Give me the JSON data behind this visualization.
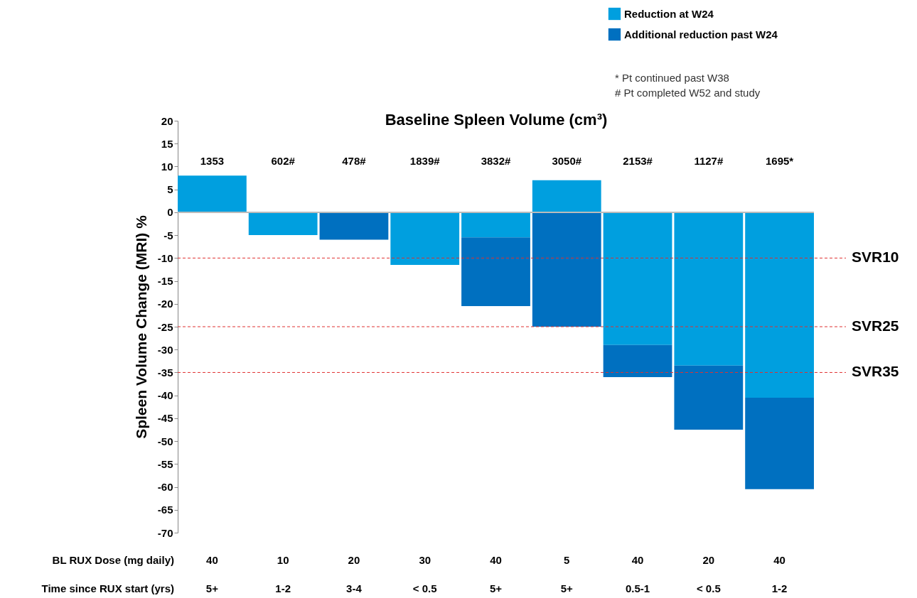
{
  "chart_data": {
    "type": "bar",
    "stacked": true,
    "xlabel": "Baseline Spleen Volume (cm³)",
    "ylabel": "Spleen Volume Change (MRI) %",
    "categories": [
      "1353",
      "602#",
      "478#",
      "1839#",
      "3832#",
      "3050#",
      "2153#",
      "1127#",
      "1695*"
    ],
    "series": [
      {
        "name": "Reduction at W24",
        "color": "#009fdf",
        "values": [
          8,
          -5,
          null,
          -11.5,
          -5.5,
          7,
          -29,
          -33.5,
          -40.5
        ]
      },
      {
        "name": "Additional reduction past W24",
        "color": "#0070c0",
        "values": [
          null,
          null,
          -6,
          null,
          -15,
          -25,
          -7,
          -14,
          -20
        ]
      }
    ],
    "ylim": [
      -70,
      20
    ],
    "yticks": [
      -70,
      -65,
      -60,
      -55,
      -50,
      -45,
      -40,
      -35,
      -30,
      -25,
      -20,
      -15,
      -10,
      -5,
      0,
      5,
      10,
      15,
      20
    ],
    "grid": false,
    "legend": "top right",
    "ref_lines": [
      {
        "axis": "y",
        "value": -10,
        "label": "SVR10",
        "color": "#e03030",
        "line_style": "dashed"
      },
      {
        "axis": "y",
        "value": -25,
        "label": "SVR25",
        "color": "#e03030",
        "line_style": "dashed"
      },
      {
        "axis": "y",
        "value": -35,
        "label": "SVR35",
        "color": "#e03030",
        "line_style": "dashed"
      }
    ],
    "annotations": [
      "BL RUX Dose (mg daily)",
      "40",
      "10",
      "20",
      "30",
      "40",
      "5",
      "40",
      "20",
      "40",
      "Time since RUX start (yrs)",
      "5+",
      "1-2",
      "3-4",
      "< 0.5",
      "5+",
      "5+",
      "0.5-1",
      "< 0.5",
      "1-2",
      "* Pt continued past W38",
      "# Pt completed W52 and study"
    ]
  }
}
